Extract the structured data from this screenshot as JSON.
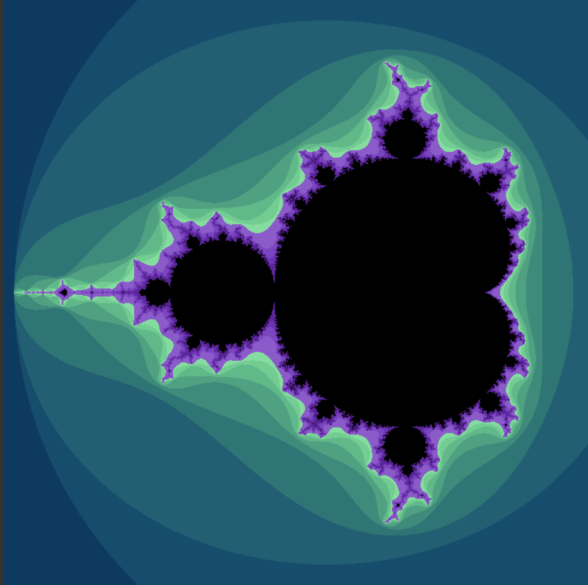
{
  "fractal": {
    "type": "mandelbrot",
    "max_iterations": 64,
    "escape_radius": 2,
    "view": {
      "re_min": -2.05,
      "re_max": 0.75,
      "im_min": -1.42,
      "im_max": 1.42
    },
    "palette": {
      "outer_background": "#0a2f52",
      "band_colors": [
        "#0e3a60",
        "#164c6c",
        "#225f72",
        "#307575",
        "#3f8b7b",
        "#4fa182",
        "#61b889",
        "#73cc92",
        "#86dca0"
      ],
      "edge_colors": [
        "#8b5cc9",
        "#7a46c0",
        "#6a33b0",
        "#5a2599"
      ],
      "interior_color": "#000000",
      "border_color": "#333333"
    }
  }
}
